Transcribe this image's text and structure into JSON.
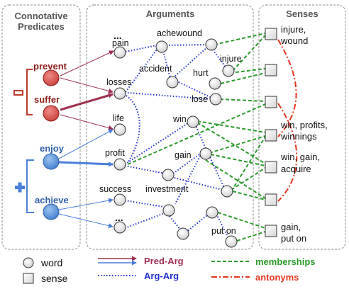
{
  "panels": {
    "connotative_predicates": "Connotative Predicates",
    "connotative_line1": "Connotative",
    "connotative_line2": "Predicates",
    "arguments": "Arguments",
    "senses": "Senses"
  },
  "polarity": {
    "negative_sign": "−",
    "positive_sign": "+"
  },
  "predicates": {
    "prevent": "prevent",
    "suffer": "suffer",
    "enjoy": "enjoy",
    "achieve": "achieve"
  },
  "arguments": {
    "ellipsis_top": "...",
    "pain": "pain",
    "losses": "losses",
    "life": "life",
    "profit": "profit",
    "success": "success",
    "ellipsis_bottom": "...",
    "achewound": "achewound",
    "accident": "accident",
    "injure": "injure",
    "hurt": "hurt",
    "lose": "lose",
    "win": "win",
    "gain": "gain",
    "investment": "investment",
    "put_on": "put on"
  },
  "senses": {
    "s1_line1": "injure,",
    "s1_line2": "wound",
    "s3_line1": "win, profits,",
    "s3_line2": "winnings",
    "s4_line1": "win, gain,",
    "s4_line2": "acquire",
    "s6_line1": "gain,",
    "s6_line2": "put on"
  },
  "legend": {
    "word": "word",
    "sense": "sense",
    "pred_arg": "Pred-Arg",
    "arg_arg": "Arg-Arg",
    "memberships": "memberships",
    "antonyms": "antonyms"
  },
  "colors": {
    "pred_arg": "#a03050",
    "arg_arg": "#2233cc",
    "memberships": "#2a9a2a",
    "antonyms": "#e8341c",
    "negative_node": "#d9534f",
    "positive_node": "#5b9bd5",
    "word_node": "#e6e6e6"
  }
}
